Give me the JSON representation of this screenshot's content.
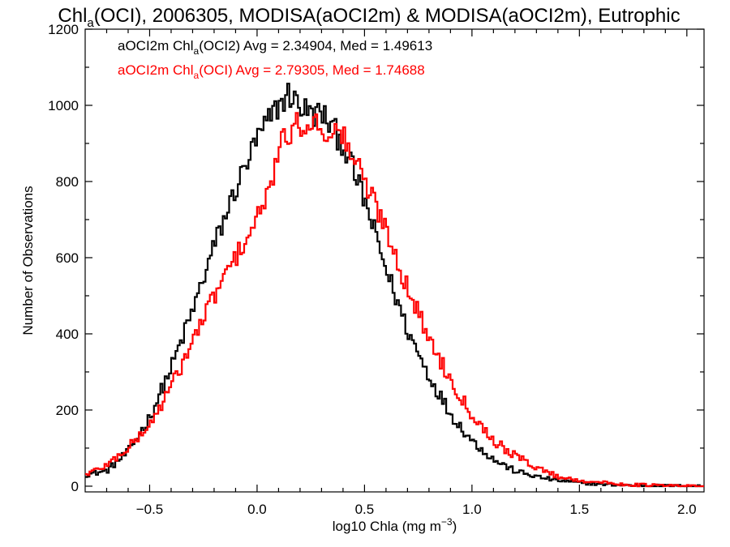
{
  "chart_data": {
    "type": "line",
    "step": true,
    "title": {
      "part1": "Chl",
      "part1_sub": "a",
      "part2": "(OCI), 2006305, MODISA(aOCI2m) & MODISA(aOCI2m), Eutrophic"
    },
    "xlabel": {
      "main": "log10 Chla (mg m",
      "sup": "−3",
      "end": ")"
    },
    "ylabel": "Number of Observations",
    "xlim": [
      -0.8,
      2.08
    ],
    "ylim": [
      -15,
      1200
    ],
    "xticks": [
      -0.5,
      0.0,
      0.5,
      1.0,
      1.5,
      2.0
    ],
    "xtick_labels": [
      "−0.5",
      "0.0",
      "0.5",
      "1.0",
      "1.5",
      "2.0"
    ],
    "yticks": [
      0,
      200,
      400,
      600,
      800,
      1000,
      1200
    ],
    "ytick_labels": [
      "0",
      "200",
      "400",
      "600",
      "800",
      "1000",
      "1200"
    ],
    "grid": false,
    "legend_placement": "top-left",
    "series": [
      {
        "label": {
          "prefix": "aOCI2m Chl",
          "sub": "a",
          "suffix": "(OCI2) Avg = 2.34904, Med = 1.49613"
        },
        "color": "#000000",
        "points": [
          [
            -0.8,
            30
          ],
          [
            -0.7,
            40
          ],
          [
            -0.6,
            90
          ],
          [
            -0.5,
            180
          ],
          [
            -0.4,
            310
          ],
          [
            -0.3,
            460
          ],
          [
            -0.2,
            630
          ],
          [
            -0.1,
            780
          ],
          [
            0.0,
            910
          ],
          [
            0.1,
            1000
          ],
          [
            0.15,
            1030
          ],
          [
            0.2,
            1000
          ],
          [
            0.25,
            975
          ],
          [
            0.3,
            980
          ],
          [
            0.4,
            900
          ],
          [
            0.5,
            750
          ],
          [
            0.6,
            570
          ],
          [
            0.7,
            410
          ],
          [
            0.8,
            290
          ],
          [
            0.9,
            190
          ],
          [
            1.0,
            120
          ],
          [
            1.1,
            70
          ],
          [
            1.2,
            40
          ],
          [
            1.3,
            25
          ],
          [
            1.4,
            15
          ],
          [
            1.5,
            9
          ],
          [
            1.6,
            5
          ],
          [
            1.7,
            3
          ],
          [
            1.8,
            1
          ],
          [
            2.0,
            0
          ]
        ]
      },
      {
        "label": {
          "prefix": "aOCI2m Chl",
          "sub": "a",
          "suffix": "(OCI) Avg = 2.79305, Med = 1.74688"
        },
        "color": "#ff0000",
        "points": [
          [
            -0.8,
            30
          ],
          [
            -0.7,
            55
          ],
          [
            -0.6,
            100
          ],
          [
            -0.5,
            160
          ],
          [
            -0.4,
            260
          ],
          [
            -0.3,
            380
          ],
          [
            -0.2,
            500
          ],
          [
            -0.1,
            600
          ],
          [
            0.0,
            700
          ],
          [
            0.05,
            760
          ],
          [
            0.1,
            880
          ],
          [
            0.15,
            930
          ],
          [
            0.2,
            950
          ],
          [
            0.25,
            960
          ],
          [
            0.3,
            940
          ],
          [
            0.4,
            920
          ],
          [
            0.5,
            800
          ],
          [
            0.6,
            680
          ],
          [
            0.7,
            520
          ],
          [
            0.8,
            390
          ],
          [
            0.9,
            280
          ],
          [
            1.0,
            190
          ],
          [
            1.1,
            120
          ],
          [
            1.2,
            80
          ],
          [
            1.3,
            50
          ],
          [
            1.4,
            25
          ],
          [
            1.5,
            15
          ],
          [
            1.6,
            10
          ],
          [
            1.7,
            5
          ],
          [
            1.8,
            3
          ],
          [
            2.0,
            0
          ]
        ]
      }
    ]
  }
}
